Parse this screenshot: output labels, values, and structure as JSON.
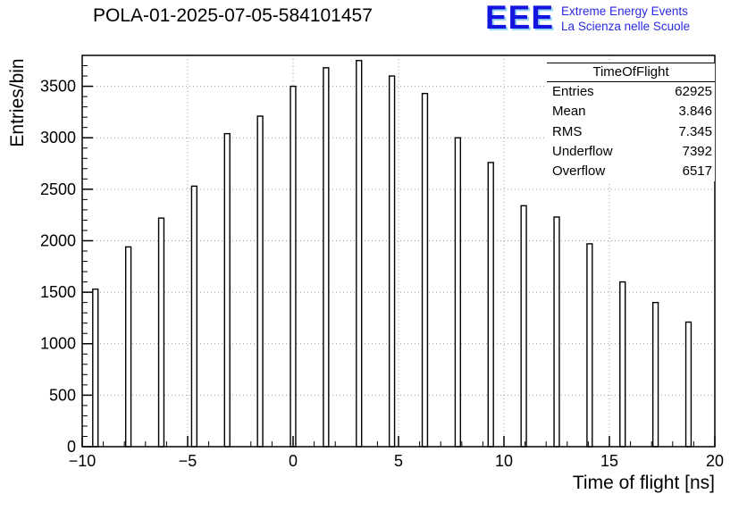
{
  "header": {
    "title": "POLA-01-2025-07-05-584101457"
  },
  "logo": {
    "eee": "EEE",
    "line1": "Extreme Energy Events",
    "line2": "La Scienza nelle Scuole",
    "color": "#1414e0"
  },
  "stats": {
    "title": "TimeOfFlight",
    "rows": [
      {
        "label": "Entries",
        "value": "62925"
      },
      {
        "label": "Mean",
        "value": "3.846"
      },
      {
        "label": "RMS",
        "value": "7.345"
      },
      {
        "label": "Underflow",
        "value": "7392"
      },
      {
        "label": "Overflow",
        "value": "6517"
      }
    ]
  },
  "chart_data": {
    "type": "bar",
    "title": "POLA-01-2025-07-05-584101457",
    "xlabel": "Time of flight [ns]",
    "ylabel": "Entries/bin",
    "xlim": [
      -10,
      20
    ],
    "ylim": [
      0,
      3800
    ],
    "grid": true,
    "x_ticks": [
      -10,
      -5,
      0,
      5,
      10,
      15,
      20
    ],
    "x_tick_labels": [
      "−10",
      "−5",
      "0",
      "5",
      "10",
      "15",
      "20"
    ],
    "y_ticks": [
      0,
      500,
      1000,
      1500,
      2000,
      2500,
      3000,
      3500
    ],
    "y_tick_labels": [
      "0",
      "500",
      "1000",
      "1500",
      "2000",
      "2500",
      "3000",
      "3500"
    ],
    "x_minor_step": 1,
    "y_minor_step": 100,
    "bar_width_ns": 0.25,
    "x": [
      -9.375,
      -7.8125,
      -6.25,
      -4.6875,
      -3.125,
      -1.5625,
      0.0,
      1.5625,
      3.125,
      4.6875,
      6.25,
      7.8125,
      9.375,
      10.9375,
      12.5,
      14.0625,
      15.625,
      17.1875,
      18.75
    ],
    "values": [
      1530,
      1940,
      2220,
      2530,
      3040,
      3210,
      3500,
      3680,
      3750,
      3600,
      3430,
      3000,
      2760,
      2340,
      2230,
      1970,
      1600,
      1400,
      1210
    ],
    "colors": {
      "bar_fill": "#ffffff",
      "bar_stroke": "#000000",
      "grid": "#999999",
      "frame": "#000000"
    }
  }
}
